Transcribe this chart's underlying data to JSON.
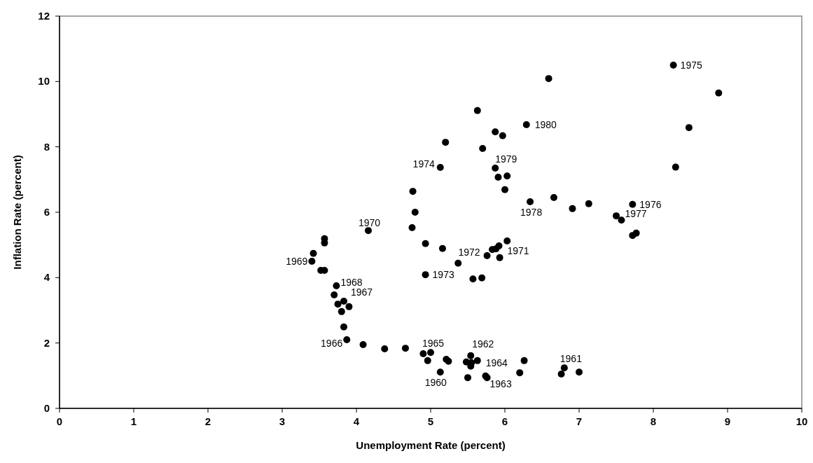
{
  "chart_data": {
    "type": "scatter",
    "xlabel": "Unemployment Rate (percent)",
    "ylabel": "Inflation Rate (percent)",
    "xlim": [
      0,
      10
    ],
    "ylim": [
      0,
      12
    ],
    "xticks": [
      0,
      1,
      2,
      3,
      4,
      5,
      6,
      7,
      8,
      9,
      10
    ],
    "yticks": [
      0,
      2,
      4,
      6,
      8,
      10,
      12
    ],
    "grid": false,
    "marker": "circle",
    "series": [
      {
        "color": "#000000",
        "x": [
          4.09,
          4.38,
          4.66,
          4.9,
          5.0,
          4.96,
          5.21,
          5.24,
          5.13,
          5.54,
          5.48,
          5.55,
          5.54,
          5.63,
          5.5,
          5.74,
          5.76,
          6.26,
          6.2,
          6.8,
          6.76,
          7.0,
          4.79,
          4.75,
          4.16,
          3.57,
          3.57,
          3.42,
          3.4,
          3.52,
          3.57,
          4.93,
          5.16,
          4.93,
          3.73,
          3.7,
          3.75,
          3.83,
          3.9,
          3.8,
          3.83,
          3.87,
          5.63,
          6.29,
          5.87,
          5.97,
          5.2,
          5.7,
          5.13,
          5.87,
          5.91,
          6.03,
          6.0,
          4.76,
          6.34,
          6.66,
          6.03,
          5.83,
          5.88,
          5.92,
          5.76,
          5.93,
          5.37,
          5.57,
          5.69,
          6.59,
          6.91,
          7.13,
          7.72,
          7.5,
          7.57,
          7.72,
          7.77,
          8.27,
          8.88,
          8.48,
          8.3
        ],
        "values": [
          1.95,
          1.82,
          1.84,
          1.67,
          1.71,
          1.46,
          1.5,
          1.44,
          1.11,
          1.61,
          1.42,
          1.4,
          1.29,
          1.46,
          0.94,
          0.99,
          0.94,
          1.46,
          1.09,
          1.24,
          1.05,
          1.11,
          6.0,
          5.53,
          5.44,
          5.19,
          5.06,
          4.74,
          4.5,
          4.22,
          4.22,
          5.04,
          4.89,
          4.09,
          3.75,
          3.47,
          3.19,
          3.28,
          3.11,
          2.96,
          2.49,
          2.1,
          9.11,
          8.68,
          8.46,
          8.34,
          8.14,
          7.95,
          7.37,
          7.35,
          7.07,
          7.11,
          6.69,
          6.64,
          6.32,
          6.45,
          5.12,
          4.86,
          4.88,
          4.97,
          4.67,
          4.61,
          4.44,
          3.96,
          3.99,
          10.09,
          6.11,
          6.26,
          6.24,
          5.89,
          5.76,
          5.29,
          5.36,
          10.5,
          9.65,
          8.59,
          7.38
        ]
      }
    ],
    "annotations": [
      {
        "text": "1975",
        "x": 8.27,
        "y": 10.5
      },
      {
        "text": "1980",
        "x": 6.29,
        "y": 8.68
      },
      {
        "text": "1979",
        "x": 5.87,
        "y": 7.35
      },
      {
        "text": "1974",
        "x": 5.13,
        "y": 7.37
      },
      {
        "text": "1978",
        "x": 6.34,
        "y": 6.32
      },
      {
        "text": "1976",
        "x": 7.72,
        "y": 6.24
      },
      {
        "text": "1977",
        "x": 7.57,
        "y": 5.76
      },
      {
        "text": "1970",
        "x": 4.16,
        "y": 5.44
      },
      {
        "text": "1972",
        "x": 5.76,
        "y": 4.67
      },
      {
        "text": "1971",
        "x": 5.92,
        "y": 4.97
      },
      {
        "text": "1973",
        "x": 4.93,
        "y": 4.09
      },
      {
        "text": "1969",
        "x": 3.4,
        "y": 4.5
      },
      {
        "text": "1968",
        "x": 3.73,
        "y": 3.75
      },
      {
        "text": "1967",
        "x": 3.83,
        "y": 3.28
      },
      {
        "text": "1966",
        "x": 3.87,
        "y": 2.1
      },
      {
        "text": "1965",
        "x": 5.0,
        "y": 1.71
      },
      {
        "text": "1962",
        "x": 5.54,
        "y": 1.61
      },
      {
        "text": "1964",
        "x": 5.63,
        "y": 1.46
      },
      {
        "text": "1960",
        "x": 5.13,
        "y": 1.11
      },
      {
        "text": "1963",
        "x": 5.76,
        "y": 0.94
      },
      {
        "text": "1961",
        "x": 6.8,
        "y": 1.24
      }
    ]
  }
}
